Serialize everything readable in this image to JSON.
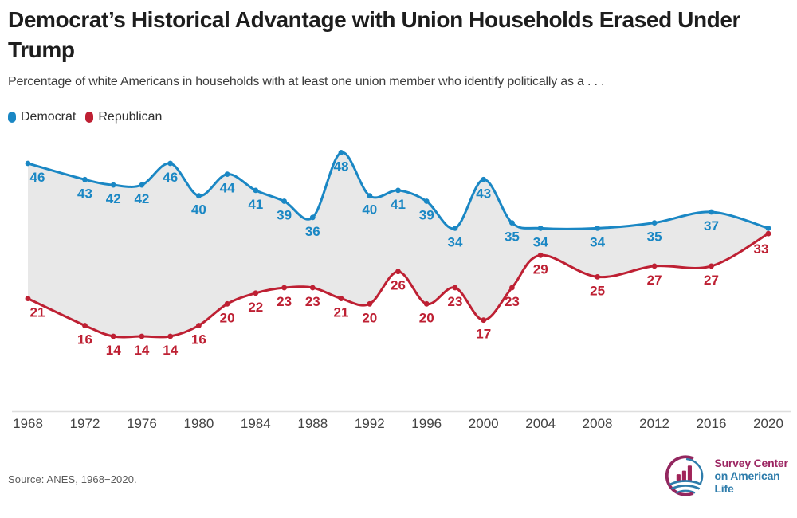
{
  "header": {
    "title": "Democrat’s Historical Advantage with Union Households Erased Under\nTrump",
    "subtitle": "Percentage of white Americans in households with at least one union member who identify politically as a . . ."
  },
  "legend": [
    {
      "label": "Democrat",
      "color": "#1a87c4"
    },
    {
      "label": "Republican",
      "color": "#be2033"
    }
  ],
  "chart_data": {
    "type": "line",
    "title": "Democrat’s Historical Advantage with Union Households Erased Under Trump",
    "xlabel": "",
    "ylabel": "",
    "x": [
      1968,
      1972,
      1974,
      1976,
      1978,
      1980,
      1982,
      1984,
      1986,
      1988,
      1990,
      1992,
      1994,
      1996,
      1998,
      2000,
      2002,
      2004,
      2008,
      2012,
      2016,
      2020
    ],
    "series": [
      {
        "name": "Democrat",
        "color": "#1a87c4",
        "values": [
          46,
          43,
          42,
          42,
          46,
          40,
          44,
          41,
          39,
          36,
          48,
          40,
          41,
          39,
          34,
          43,
          35,
          34,
          34,
          35,
          37,
          34
        ],
        "point_labels": [
          "46",
          "43",
          "42",
          "42",
          "46",
          "40",
          "44",
          "41",
          "39",
          "36",
          "48",
          "40",
          "41",
          "39",
          "34",
          "43",
          "35",
          "34",
          "34",
          "35",
          "37",
          ""
        ]
      },
      {
        "name": "Republican",
        "color": "#be2033",
        "values": [
          21,
          16,
          14,
          14,
          14,
          16,
          20,
          22,
          23,
          23,
          21,
          20,
          26,
          20,
          23,
          17,
          23,
          29,
          25,
          27,
          27,
          33
        ],
        "point_labels": [
          "21",
          "16",
          "14",
          "14",
          "14",
          "16",
          "20",
          "22",
          "23",
          "23",
          "21",
          "20",
          "26",
          "20",
          "23",
          "17",
          "23",
          "29",
          "25",
          "27",
          "27",
          "33"
        ]
      }
    ],
    "band_fill": "#e8e8e8",
    "axis_line_color": "#dedede",
    "x_ticks": [
      1968,
      1972,
      1976,
      1980,
      1984,
      1988,
      1992,
      1996,
      2000,
      2004,
      2008,
      2012,
      2016,
      2020
    ],
    "xlim": [
      1968,
      2020
    ],
    "ylim": [
      0,
      52
    ],
    "grid": false,
    "legend_position": "top-left"
  },
  "footer": {
    "source": "Source: ANES, 1968−2020.",
    "logo": {
      "line1": "Survey Center",
      "line2": "on American Life"
    }
  }
}
